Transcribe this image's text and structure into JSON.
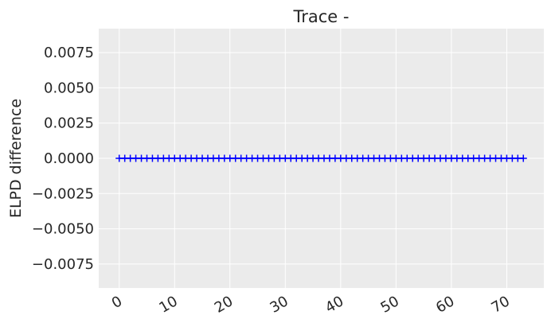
{
  "chart_data": {
    "type": "scatter",
    "title": "Trace -",
    "xlabel": "",
    "ylabel": "ELPD difference",
    "marker": "+",
    "grid": true,
    "xlim": [
      -3.7,
      76.7
    ],
    "ylim": [
      -0.0092,
      0.0092
    ],
    "xticks": [
      0,
      10,
      20,
      30,
      40,
      50,
      60,
      70
    ],
    "yticks": [
      -0.0075,
      -0.005,
      -0.0025,
      0.0,
      0.0025,
      0.005,
      0.0075
    ],
    "xtick_labels": [
      "0",
      "10",
      "20",
      "30",
      "40",
      "50",
      "60",
      "70"
    ],
    "ytick_labels": [
      "−0.0075",
      "−0.0050",
      "−0.0025",
      "0.0000",
      "0.0025",
      "0.0050",
      "0.0075"
    ],
    "series": [
      {
        "color": "#0000ff",
        "x": [
          0,
          1,
          2,
          3,
          4,
          5,
          6,
          7,
          8,
          9,
          10,
          11,
          12,
          13,
          14,
          15,
          16,
          17,
          18,
          19,
          20,
          21,
          22,
          23,
          24,
          25,
          26,
          27,
          28,
          29,
          30,
          31,
          32,
          33,
          34,
          35,
          36,
          37,
          38,
          39,
          40,
          41,
          42,
          43,
          44,
          45,
          46,
          47,
          48,
          49,
          50,
          51,
          52,
          53,
          54,
          55,
          56,
          57,
          58,
          59,
          60,
          61,
          62,
          63,
          64,
          65,
          66,
          67,
          68,
          69,
          70,
          71,
          72,
          73
        ],
        "y": [
          0,
          0,
          0,
          0,
          0,
          0,
          0,
          0,
          0,
          0,
          0,
          0,
          0,
          0,
          0,
          0,
          0,
          0,
          0,
          0,
          0,
          0,
          0,
          0,
          0,
          0,
          0,
          0,
          0,
          0,
          0,
          0,
          0,
          0,
          0,
          0,
          0,
          0,
          0,
          0,
          0,
          0,
          0,
          0,
          0,
          0,
          0,
          0,
          0,
          0,
          0,
          0,
          0,
          0,
          0,
          0,
          0,
          0,
          0,
          0,
          0,
          0,
          0,
          0,
          0,
          0,
          0,
          0,
          0,
          0,
          0,
          0,
          0,
          0
        ]
      }
    ],
    "colors": {
      "plot_background": "#ebebeb",
      "grid": "#ffffff",
      "text": "#262626"
    }
  }
}
